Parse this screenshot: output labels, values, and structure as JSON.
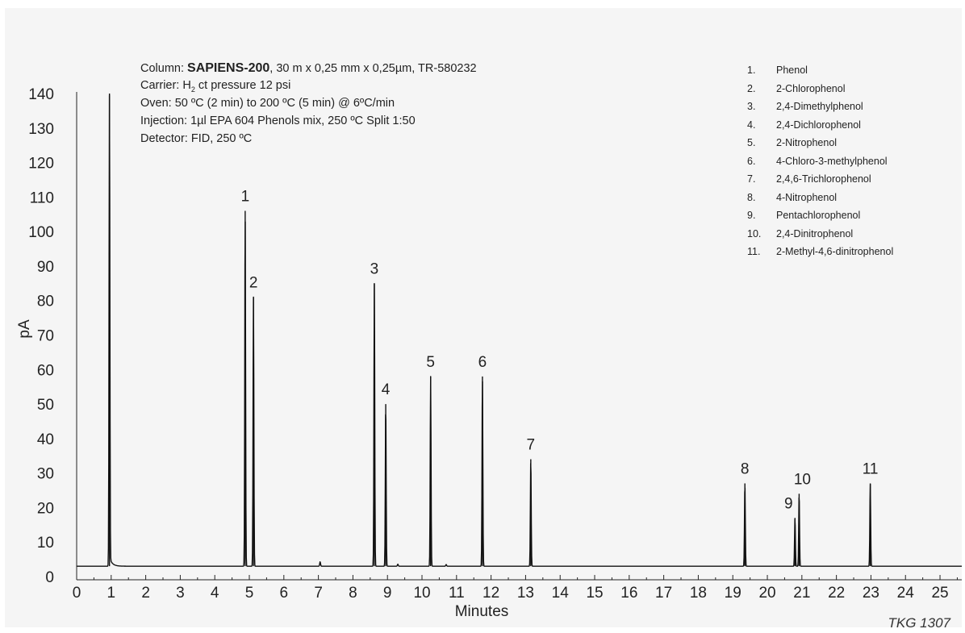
{
  "conditions": {
    "column_label": "Column: ",
    "column_name": "SAPIENS-200",
    "column_rest": ", 30 m x 0,25 mm x 0,25µm, TR-580232",
    "carrier_pre": "Carrier: H",
    "carrier_sub": "2",
    "carrier_post": " ct pressure 12 psi",
    "oven": "Oven: 50 ºC (2 min) to 200 ºC (5 min) @ 6ºC/min",
    "injection": "Injection: 1µl EPA 604 Phenols mix, 250 ºC Split 1:50",
    "detector": "Detector: FID, 250 ºC"
  },
  "legend": [
    {
      "num": "1.",
      "name": "Phenol"
    },
    {
      "num": "2.",
      "name": "2-Chlorophenol"
    },
    {
      "num": "3.",
      "name": "2,4-Dimethylphenol"
    },
    {
      "num": "4.",
      "name": "2,4-Dichlorophenol"
    },
    {
      "num": "5.",
      "name": "2-Nitrophenol"
    },
    {
      "num": "6.",
      "name": "4-Chloro-3-methylphenol"
    },
    {
      "num": "7.",
      "name": "2,4,6-Trichlorophenol"
    },
    {
      "num": "8.",
      "name": "4-Nitrophenol"
    },
    {
      "num": "9.",
      "name": "Pentachlorophenol"
    },
    {
      "num": "10.",
      "name": "2,4-Dinitrophenol"
    },
    {
      "num": "11.",
      "name": "2-Methyl-4,6-dinitrophenol"
    }
  ],
  "code": "TKG 1307",
  "chart_data": {
    "type": "line",
    "xlabel": "Minutes",
    "ylabel": "pA",
    "xlim": [
      0,
      25.7
    ],
    "ylim": [
      0,
      140
    ],
    "xticks": [
      0,
      1,
      2,
      3,
      4,
      5,
      6,
      7,
      8,
      9,
      10,
      11,
      12,
      13,
      14,
      15,
      16,
      17,
      18,
      19,
      20,
      21,
      22,
      23,
      24,
      25
    ],
    "yticks": [
      0,
      10,
      20,
      30,
      40,
      50,
      60,
      70,
      80,
      90,
      100,
      110,
      120,
      130,
      140
    ],
    "baseline": 3,
    "line_color": "#111111",
    "peaks": [
      {
        "label": "",
        "rt": 0.95,
        "height": 140
      },
      {
        "label": "1",
        "rt": 4.88,
        "height": 106
      },
      {
        "label": "2",
        "rt": 5.12,
        "height": 81
      },
      {
        "label": "3",
        "rt": 8.62,
        "height": 85
      },
      {
        "label": "4",
        "rt": 8.95,
        "height": 50
      },
      {
        "label": "5",
        "rt": 10.25,
        "height": 58
      },
      {
        "label": "6",
        "rt": 11.75,
        "height": 58
      },
      {
        "label": "7",
        "rt": 13.15,
        "height": 34
      },
      {
        "label": "8",
        "rt": 19.35,
        "height": 27
      },
      {
        "label": "9",
        "rt": 20.8,
        "height": 17
      },
      {
        "label": "10",
        "rt": 20.92,
        "height": 24
      },
      {
        "label": "11",
        "rt": 22.98,
        "height": 27
      }
    ],
    "minor_peaks": [
      {
        "rt": 7.05,
        "height": 4.3
      },
      {
        "rt": 9.3,
        "height": 3.6
      },
      {
        "rt": 10.7,
        "height": 3.5
      }
    ]
  }
}
